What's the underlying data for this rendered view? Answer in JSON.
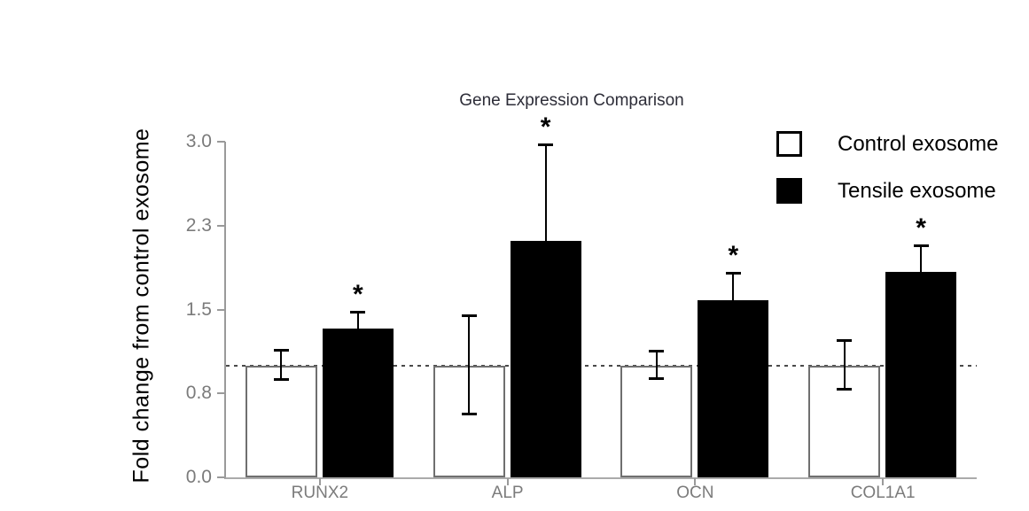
{
  "colors": {
    "control_fill": "#ffffff",
    "control_border": "#6f6f6f",
    "tensile_fill": "#000000",
    "axis": "#9a9a9a",
    "tick_label": "#7b7b7b",
    "title": "#2d2d38",
    "reference_line": "#4a4a4a"
  },
  "legend": {
    "items": [
      {
        "label": "Control exosome",
        "swatch": "white-square"
      },
      {
        "label": "Tensile exosome",
        "swatch": "black-square"
      }
    ]
  },
  "chart_data": {
    "type": "bar",
    "title": "Gene Expression Comparison",
    "xlabel": "",
    "ylabel": "Fold change from control exosome",
    "categories": [
      "RUNX2",
      "ALP",
      "OCN",
      "COL1A1"
    ],
    "series": [
      {
        "name": "Control exosome",
        "fill": "#ffffff",
        "border": "#6f6f6f",
        "values": [
          1.0,
          1.0,
          1.0,
          1.0
        ],
        "error_plus": [
          0.14,
          0.45,
          0.13,
          0.23
        ],
        "error_minus": [
          0.13,
          0.44,
          0.12,
          0.22
        ],
        "significance": [
          "",
          "",
          "",
          ""
        ]
      },
      {
        "name": "Tensile exosome",
        "fill": "#000000",
        "border": "#000000",
        "values": [
          1.33,
          2.11,
          1.58,
          1.84
        ],
        "error_plus": [
          0.15,
          0.87,
          0.25,
          0.23
        ],
        "error_minus": [
          0,
          0,
          0,
          0
        ],
        "significance": [
          "*",
          "*",
          "*",
          "*"
        ]
      }
    ],
    "ylim": [
      0,
      3.0
    ],
    "yticks": {
      "values": [
        0,
        0.75,
        1.5,
        2.25,
        3.0
      ],
      "labels": [
        "0.0",
        "0.8",
        "1.5",
        "2.3",
        "3.0"
      ]
    },
    "reference_line": {
      "value": 1.0,
      "style": "dotted"
    },
    "grid": false,
    "legend_position": "top-right"
  }
}
